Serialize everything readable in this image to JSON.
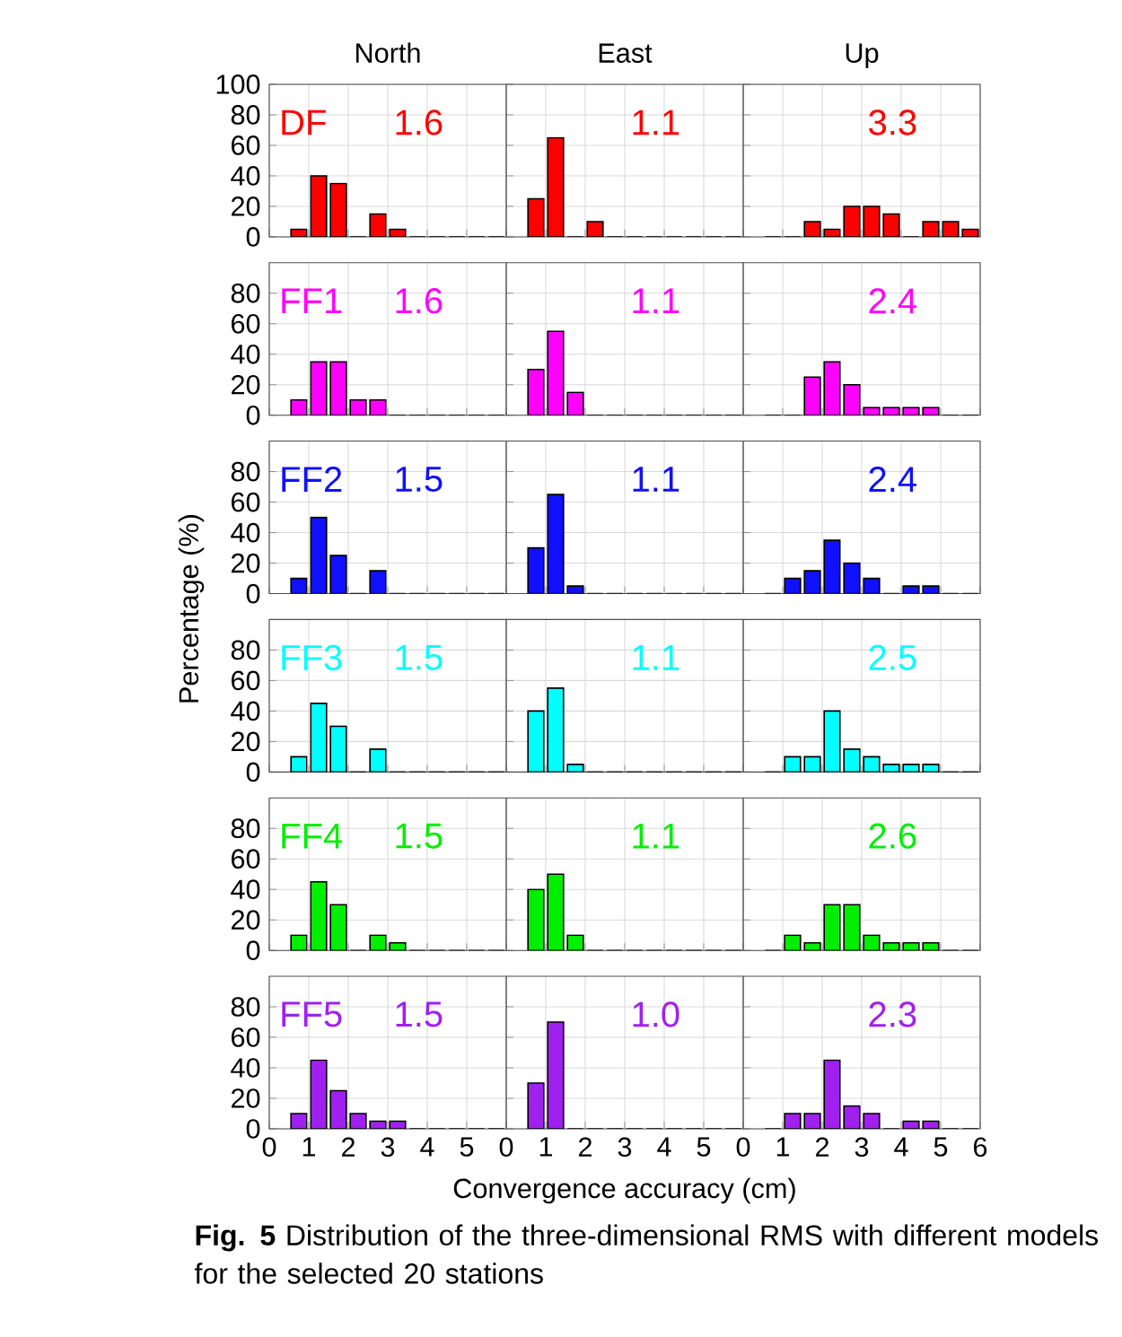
{
  "chart_data": [
    {
      "type": "histogram",
      "title": "North",
      "annotations": [
        "DF",
        "1.6"
      ],
      "color": "#ff0000",
      "bins": [
        0.5,
        1,
        1.5,
        2,
        2.5,
        3,
        3.5,
        4,
        4.5,
        5,
        5.5,
        6
      ],
      "values": [
        5,
        40,
        35,
        0,
        15,
        5,
        0,
        0,
        0,
        0,
        0
      ],
      "xlim": [
        0,
        6
      ],
      "xticks": [
        0,
        1,
        2,
        3,
        4,
        5
      ],
      "ylim": [
        0,
        100
      ],
      "yticks": [
        0,
        20,
        40,
        60,
        80,
        100
      ],
      "grid": true,
      "tick_labels": "y"
    },
    {
      "type": "histogram",
      "title": "East",
      "annotations": [
        "1.1"
      ],
      "color": "#ff0000",
      "bins": [
        0.5,
        1,
        1.5,
        2,
        2.5,
        3,
        3.5,
        4,
        4.5,
        5,
        5.5,
        6
      ],
      "values": [
        25,
        65,
        0,
        10,
        0,
        0,
        0,
        0,
        0,
        0,
        0
      ],
      "xlim": [
        0,
        6
      ],
      "xticks": [
        0,
        1,
        2,
        3,
        4,
        5
      ],
      "ylim": [
        0,
        100
      ],
      "yticks": [
        0,
        20,
        40,
        60,
        80,
        100
      ],
      "grid": true,
      "tick_labels": false
    },
    {
      "type": "histogram",
      "title": "Up",
      "annotations": [
        "3.3"
      ],
      "color": "#ff0000",
      "bins": [
        0.5,
        1,
        1.5,
        2,
        2.5,
        3,
        3.5,
        4,
        4.5,
        5,
        5.5,
        6
      ],
      "values": [
        0,
        0,
        10,
        5,
        20,
        20,
        15,
        0,
        10,
        10,
        5
      ],
      "xlim": [
        0,
        6
      ],
      "xticks": [
        0,
        1,
        2,
        3,
        4,
        5,
        6
      ],
      "ylim": [
        0,
        100
      ],
      "yticks": [
        0,
        20,
        40,
        60,
        80,
        100
      ],
      "grid": true,
      "tick_labels": false
    },
    {
      "type": "histogram",
      "annotations": [
        "FF1",
        "1.6"
      ],
      "color": "#ff00ff",
      "bins": [
        0.5,
        1,
        1.5,
        2,
        2.5,
        3,
        3.5,
        4,
        4.5,
        5,
        5.5,
        6
      ],
      "values": [
        10,
        35,
        35,
        10,
        10,
        0,
        0,
        0,
        0,
        0,
        0
      ],
      "xlim": [
        0,
        6
      ],
      "xticks": [
        0,
        1,
        2,
        3,
        4,
        5
      ],
      "ylim": [
        0,
        100
      ],
      "yticks": [
        0,
        20,
        40,
        60,
        80
      ],
      "grid": true,
      "tick_labels": "y"
    },
    {
      "type": "histogram",
      "annotations": [
        "1.1"
      ],
      "color": "#ff00ff",
      "bins": [
        0.5,
        1,
        1.5,
        2,
        2.5,
        3,
        3.5,
        4,
        4.5,
        5,
        5.5,
        6
      ],
      "values": [
        30,
        55,
        15,
        0,
        0,
        0,
        0,
        0,
        0,
        0,
        0
      ],
      "xlim": [
        0,
        6
      ],
      "xticks": [
        0,
        1,
        2,
        3,
        4,
        5
      ],
      "ylim": [
        0,
        100
      ],
      "yticks": [
        0,
        20,
        40,
        60,
        80
      ],
      "grid": true,
      "tick_labels": false
    },
    {
      "type": "histogram",
      "annotations": [
        "2.4"
      ],
      "color": "#ff00ff",
      "bins": [
        0.5,
        1,
        1.5,
        2,
        2.5,
        3,
        3.5,
        4,
        4.5,
        5,
        5.5,
        6
      ],
      "values": [
        0,
        0,
        25,
        35,
        20,
        5,
        5,
        5,
        5,
        0,
        0
      ],
      "xlim": [
        0,
        6
      ],
      "xticks": [
        0,
        1,
        2,
        3,
        4,
        5,
        6
      ],
      "ylim": [
        0,
        100
      ],
      "yticks": [
        0,
        20,
        40,
        60,
        80
      ],
      "grid": true,
      "tick_labels": false
    },
    {
      "type": "histogram",
      "ylabel": "Percentage (%)",
      "annotations": [
        "FF2",
        "1.5"
      ],
      "color": "#1010ff",
      "bins": [
        0.5,
        1,
        1.5,
        2,
        2.5,
        3,
        3.5,
        4,
        4.5,
        5,
        5.5,
        6
      ],
      "values": [
        10,
        50,
        25,
        0,
        15,
        0,
        0,
        0,
        0,
        0,
        0
      ],
      "xlim": [
        0,
        6
      ],
      "xticks": [
        0,
        1,
        2,
        3,
        4,
        5
      ],
      "ylim": [
        0,
        100
      ],
      "yticks": [
        0,
        20,
        40,
        60,
        80
      ],
      "grid": true,
      "tick_labels": "y"
    },
    {
      "type": "histogram",
      "annotations": [
        "1.1"
      ],
      "color": "#1010ff",
      "bins": [
        0.5,
        1,
        1.5,
        2,
        2.5,
        3,
        3.5,
        4,
        4.5,
        5,
        5.5,
        6
      ],
      "values": [
        30,
        65,
        5,
        0,
        0,
        0,
        0,
        0,
        0,
        0,
        0
      ],
      "xlim": [
        0,
        6
      ],
      "xticks": [
        0,
        1,
        2,
        3,
        4,
        5
      ],
      "ylim": [
        0,
        100
      ],
      "yticks": [
        0,
        20,
        40,
        60,
        80
      ],
      "grid": true,
      "tick_labels": false
    },
    {
      "type": "histogram",
      "annotations": [
        "2.4"
      ],
      "color": "#1010ff",
      "bins": [
        0.5,
        1,
        1.5,
        2,
        2.5,
        3,
        3.5,
        4,
        4.5,
        5,
        5.5,
        6
      ],
      "values": [
        0,
        10,
        15,
        35,
        20,
        10,
        0,
        5,
        5,
        0,
        0
      ],
      "xlim": [
        0,
        6
      ],
      "xticks": [
        0,
        1,
        2,
        3,
        4,
        5,
        6
      ],
      "ylim": [
        0,
        100
      ],
      "yticks": [
        0,
        20,
        40,
        60,
        80
      ],
      "grid": true,
      "tick_labels": false
    },
    {
      "type": "histogram",
      "annotations": [
        "FF3",
        "1.5"
      ],
      "color": "#00ffff",
      "bins": [
        0.5,
        1,
        1.5,
        2,
        2.5,
        3,
        3.5,
        4,
        4.5,
        5,
        5.5,
        6
      ],
      "values": [
        10,
        45,
        30,
        0,
        15,
        0,
        0,
        0,
        0,
        0,
        0
      ],
      "xlim": [
        0,
        6
      ],
      "xticks": [
        0,
        1,
        2,
        3,
        4,
        5
      ],
      "ylim": [
        0,
        100
      ],
      "yticks": [
        0,
        20,
        40,
        60,
        80
      ],
      "grid": true,
      "tick_labels": "y"
    },
    {
      "type": "histogram",
      "annotations": [
        "1.1"
      ],
      "color": "#00ffff",
      "bins": [
        0.5,
        1,
        1.5,
        2,
        2.5,
        3,
        3.5,
        4,
        4.5,
        5,
        5.5,
        6
      ],
      "values": [
        40,
        55,
        5,
        0,
        0,
        0,
        0,
        0,
        0,
        0,
        0
      ],
      "xlim": [
        0,
        6
      ],
      "xticks": [
        0,
        1,
        2,
        3,
        4,
        5
      ],
      "ylim": [
        0,
        100
      ],
      "yticks": [
        0,
        20,
        40,
        60,
        80
      ],
      "grid": true,
      "tick_labels": false
    },
    {
      "type": "histogram",
      "annotations": [
        "2.5"
      ],
      "color": "#00ffff",
      "bins": [
        0.5,
        1,
        1.5,
        2,
        2.5,
        3,
        3.5,
        4,
        4.5,
        5,
        5.5,
        6
      ],
      "values": [
        0,
        10,
        10,
        40,
        15,
        10,
        5,
        5,
        5,
        0,
        0
      ],
      "xlim": [
        0,
        6
      ],
      "xticks": [
        0,
        1,
        2,
        3,
        4,
        5,
        6
      ],
      "ylim": [
        0,
        100
      ],
      "yticks": [
        0,
        20,
        40,
        60,
        80
      ],
      "grid": true,
      "tick_labels": false
    },
    {
      "type": "histogram",
      "annotations": [
        "FF4",
        "1.5"
      ],
      "color": "#00ee00",
      "bins": [
        0.5,
        1,
        1.5,
        2,
        2.5,
        3,
        3.5,
        4,
        4.5,
        5,
        5.5,
        6
      ],
      "values": [
        10,
        45,
        30,
        0,
        10,
        5,
        0,
        0,
        0,
        0,
        0
      ],
      "xlim": [
        0,
        6
      ],
      "xticks": [
        0,
        1,
        2,
        3,
        4,
        5
      ],
      "ylim": [
        0,
        100
      ],
      "yticks": [
        0,
        20,
        40,
        60,
        80
      ],
      "grid": true,
      "tick_labels": "y"
    },
    {
      "type": "histogram",
      "annotations": [
        "1.1"
      ],
      "color": "#00ee00",
      "bins": [
        0.5,
        1,
        1.5,
        2,
        2.5,
        3,
        3.5,
        4,
        4.5,
        5,
        5.5,
        6
      ],
      "values": [
        40,
        50,
        10,
        0,
        0,
        0,
        0,
        0,
        0,
        0,
        0
      ],
      "xlim": [
        0,
        6
      ],
      "xticks": [
        0,
        1,
        2,
        3,
        4,
        5
      ],
      "ylim": [
        0,
        100
      ],
      "yticks": [
        0,
        20,
        40,
        60,
        80
      ],
      "grid": true,
      "tick_labels": false
    },
    {
      "type": "histogram",
      "annotations": [
        "2.6"
      ],
      "color": "#00ee00",
      "bins": [
        0.5,
        1,
        1.5,
        2,
        2.5,
        3,
        3.5,
        4,
        4.5,
        5,
        5.5,
        6
      ],
      "values": [
        0,
        10,
        5,
        30,
        30,
        10,
        5,
        5,
        5,
        0,
        0
      ],
      "xlim": [
        0,
        6
      ],
      "xticks": [
        0,
        1,
        2,
        3,
        4,
        5,
        6
      ],
      "ylim": [
        0,
        100
      ],
      "yticks": [
        0,
        20,
        40,
        60,
        80
      ],
      "grid": true,
      "tick_labels": false
    },
    {
      "type": "histogram",
      "annotations": [
        "FF5",
        "1.5"
      ],
      "color": "#a020f0",
      "bins": [
        0.5,
        1,
        1.5,
        2,
        2.5,
        3,
        3.5,
        4,
        4.5,
        5,
        5.5,
        6
      ],
      "values": [
        10,
        45,
        25,
        10,
        5,
        5,
        0,
        0,
        0,
        0,
        0
      ],
      "xlim": [
        0,
        6
      ],
      "xticks": [
        0,
        1,
        2,
        3,
        4,
        5
      ],
      "ylim": [
        0,
        100
      ],
      "yticks": [
        0,
        20,
        40,
        60,
        80
      ],
      "grid": true
    },
    {
      "type": "histogram",
      "xlabel": "Convergence accuracy (cm)",
      "annotations": [
        "1.0"
      ],
      "color": "#a020f0",
      "bins": [
        0.5,
        1,
        1.5,
        2,
        2.5,
        3,
        3.5,
        4,
        4.5,
        5,
        5.5,
        6
      ],
      "values": [
        30,
        70,
        0,
        0,
        0,
        0,
        0,
        0,
        0,
        0,
        0
      ],
      "xlim": [
        0,
        6
      ],
      "xticks": [
        0,
        1,
        2,
        3,
        4,
        5
      ],
      "ylim": [
        0,
        100
      ],
      "yticks": [
        0,
        20,
        40,
        60,
        80
      ],
      "grid": true,
      "tick_labels": "x"
    },
    {
      "type": "histogram",
      "annotations": [
        "2.3"
      ],
      "color": "#a020f0",
      "bins": [
        0.5,
        1,
        1.5,
        2,
        2.5,
        3,
        3.5,
        4,
        4.5,
        5,
        5.5,
        6
      ],
      "values": [
        0,
        10,
        10,
        45,
        15,
        10,
        0,
        5,
        5,
        0,
        0
      ],
      "xlim": [
        0,
        6
      ],
      "xticks": [
        0,
        1,
        2,
        3,
        4,
        5,
        6
      ],
      "ylim": [
        0,
        100
      ],
      "yticks": [
        0,
        20,
        40,
        60,
        80
      ],
      "grid": true,
      "tick_labels": "x"
    },
    {
      "type": "other",
      "annotations": [
        "**Fig. 5** Distribution of the three-dimensional RMS with different models for the selected 20 stations"
      ]
    }
  ]
}
